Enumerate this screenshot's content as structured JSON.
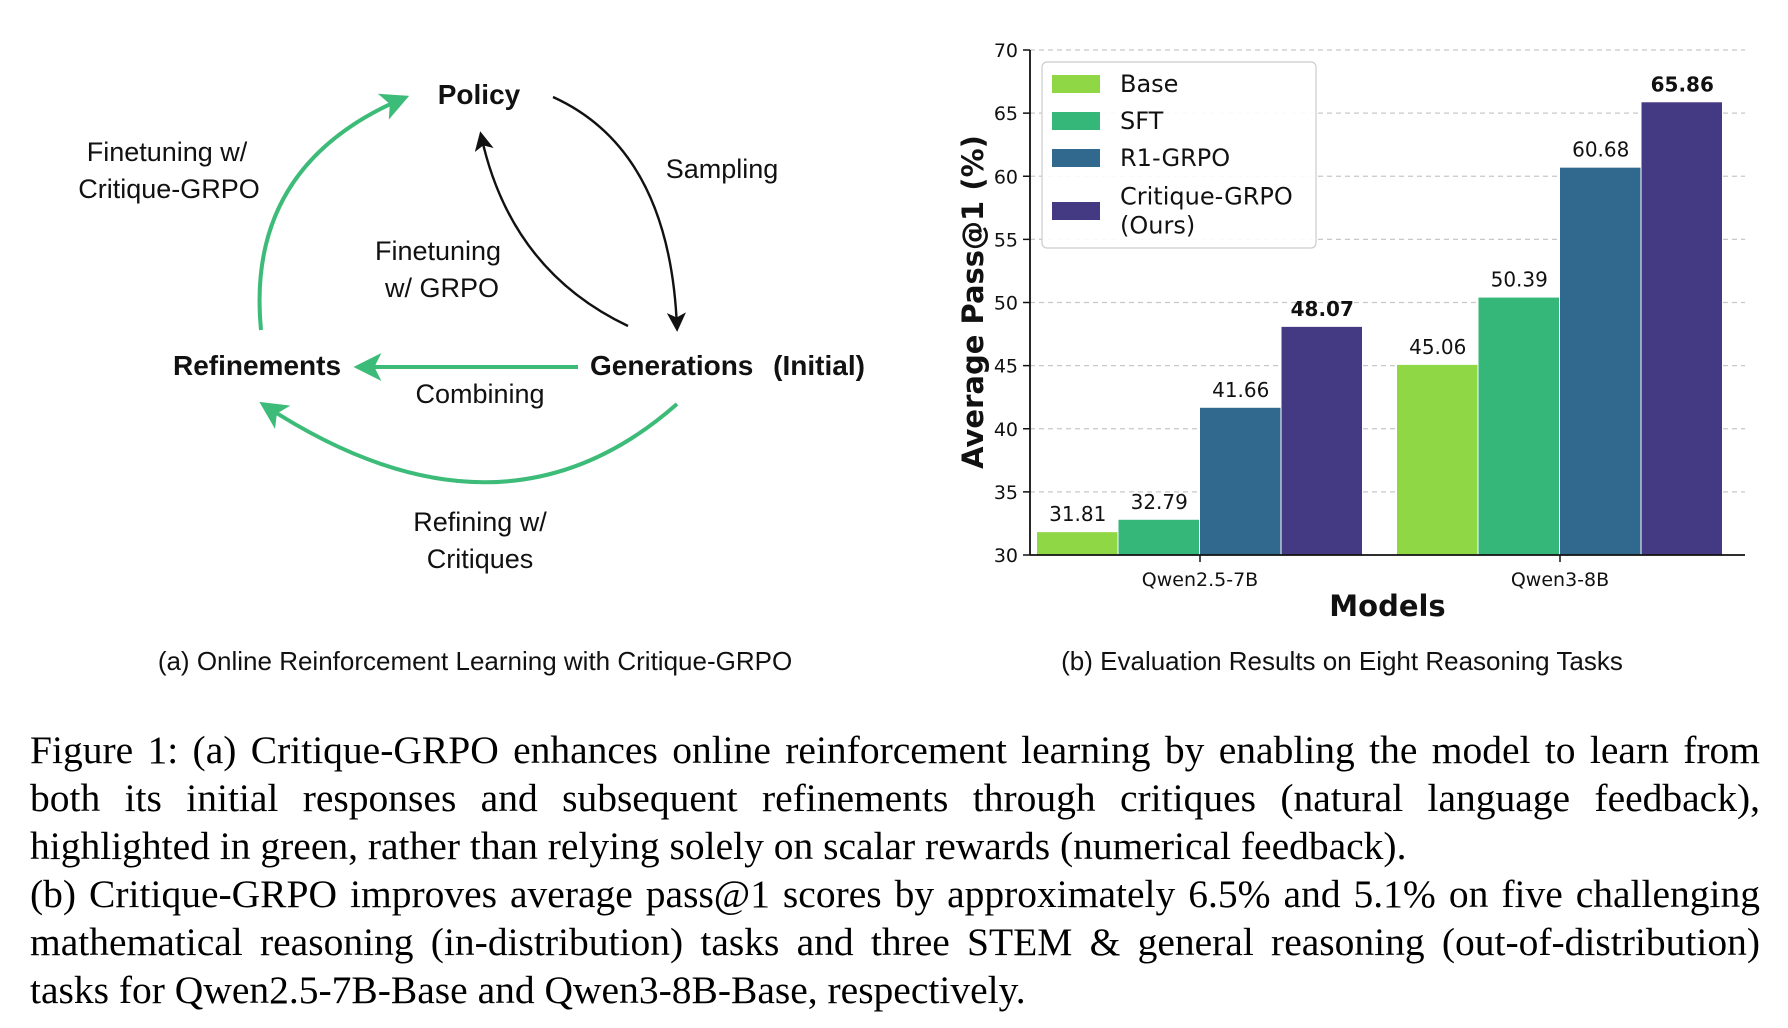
{
  "diagram": {
    "nodes": {
      "policy": "Policy",
      "refinements": "Refinements",
      "generations": "Generations",
      "generations_suffix": "(Initial)"
    },
    "edges": {
      "sampling": "Sampling",
      "finetuning_grpo": [
        "Finetuning",
        "w/ GRPO"
      ],
      "finetuning_critique": [
        "Finetuning w/",
        "Critique-GRPO"
      ],
      "combining": "Combining",
      "refining": [
        "Refining w/",
        "Critiques"
      ]
    },
    "colors": {
      "green": "#3dbb78",
      "black": "#111111"
    },
    "subcaption": "(a) Online Reinforcement Learning with Critique-GRPO"
  },
  "chart_data": {
    "type": "bar",
    "categories": [
      "Qwen2.5-7B",
      "Qwen3-8B"
    ],
    "series": [
      {
        "name": "Base",
        "values": [
          31.81,
          45.06
        ],
        "color": "#8fd744"
      },
      {
        "name": "SFT",
        "values": [
          32.79,
          50.39
        ],
        "color": "#35b779"
      },
      {
        "name": "R1-GRPO",
        "values": [
          41.66,
          60.68
        ],
        "color": "#31688e"
      },
      {
        "name": "Critique-GRPO (Ours)",
        "legend_lines": [
          "Critique-GRPO",
          "(Ours)"
        ],
        "values": [
          48.07,
          65.86
        ],
        "color": "#443983",
        "bold_labels": true
      }
    ],
    "ylim": [
      30,
      70
    ],
    "yticks": [
      30,
      35,
      40,
      45,
      50,
      55,
      60,
      65,
      70
    ],
    "xlabel": "Models",
    "ylabel": "Average Pass@1 (%)",
    "grid": "horizontal dashed",
    "legend_position": "top-left",
    "subcaption": "(b) Evaluation Results on Eight Reasoning Tasks"
  },
  "caption": {
    "paragraph1": "Figure 1: (a) Critique-GRPO enhances online reinforcement learning by enabling the model to learn from both its initial responses and subsequent refinements through critiques (natural language feedback), highlighted in green, rather than relying solely on scalar rewards (numerical feedback).",
    "paragraph2": "(b) Critique-GRPO improves average pass@1 scores by approximately 6.5% and 5.1% on five challenging mathematical reasoning (in-distribution) tasks and three STEM & general reasoning (out-of-distribution) tasks for Qwen2.5-7B-Base and Qwen3-8B-Base, respectively."
  }
}
